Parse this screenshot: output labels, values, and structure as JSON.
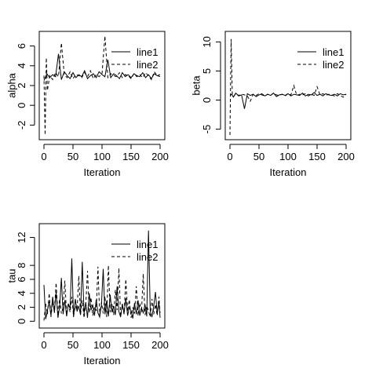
{
  "chart_data": [
    {
      "type": "line",
      "title": "",
      "xlabel": "Iteration",
      "ylabel": "alpha",
      "xlim": [
        0,
        200
      ],
      "ylim": [
        -3,
        7
      ],
      "xticks": [
        0,
        50,
        100,
        150,
        200
      ],
      "yticks": [
        -2,
        0,
        2,
        4,
        6
      ],
      "legend": "top-right",
      "series": [
        {
          "name": "line1",
          "style": "solid",
          "x": [
            0,
            5,
            10,
            15,
            20,
            25,
            30,
            35,
            40,
            45,
            50,
            55,
            60,
            65,
            70,
            75,
            80,
            85,
            90,
            95,
            100,
            105,
            110,
            115,
            120,
            125,
            130,
            135,
            140,
            145,
            150,
            155,
            160,
            165,
            170,
            175,
            180,
            185,
            190,
            195,
            200
          ],
          "y": [
            2.5,
            3.2,
            2.8,
            3.1,
            2.9,
            5.2,
            2.6,
            3.4,
            3.0,
            2.7,
            3.3,
            2.8,
            3.1,
            2.9,
            3.5,
            2.7,
            3.0,
            3.2,
            2.8,
            3.4,
            3.1,
            2.9,
            4.6,
            2.8,
            3.2,
            3.0,
            2.7,
            3.3,
            2.9,
            3.1,
            2.8,
            3.2,
            3.0,
            2.9,
            3.3,
            2.8,
            3.1,
            2.7,
            3.2,
            3.0,
            2.9
          ]
        },
        {
          "name": "line2",
          "style": "dashed",
          "x": [
            0,
            2,
            4,
            6,
            10,
            15,
            20,
            25,
            30,
            35,
            40,
            45,
            50,
            55,
            60,
            65,
            70,
            75,
            80,
            85,
            90,
            95,
            100,
            105,
            110,
            115,
            120,
            125,
            130,
            135,
            140,
            145,
            150,
            155,
            160,
            165,
            170,
            175,
            180,
            185,
            190,
            195,
            200
          ],
          "y": [
            3.0,
            -3.0,
            4.8,
            1.5,
            3.0,
            2.6,
            3.3,
            2.9,
            6.3,
            3.1,
            2.8,
            3.4,
            2.7,
            3.1,
            3.0,
            2.8,
            3.3,
            2.9,
            3.5,
            2.7,
            3.1,
            2.9,
            3.2,
            7.0,
            2.8,
            3.2,
            3.0,
            2.9,
            3.3,
            2.8,
            3.1,
            3.0,
            2.7,
            3.2,
            2.9,
            3.1,
            2.8,
            3.3,
            3.0,
            2.6,
            3.4,
            3.0,
            3.1
          ]
        }
      ]
    },
    {
      "type": "line",
      "title": "",
      "xlabel": "Iteration",
      "ylabel": "beta",
      "xlim": [
        0,
        200
      ],
      "ylim": [
        -6,
        11
      ],
      "xticks": [
        0,
        50,
        100,
        150,
        200
      ],
      "yticks": [
        -5,
        0,
        5,
        10
      ],
      "legend": "top-right",
      "series": [
        {
          "name": "line1",
          "style": "solid",
          "x": [
            0,
            3,
            6,
            10,
            15,
            20,
            25,
            30,
            35,
            40,
            45,
            50,
            55,
            60,
            65,
            70,
            75,
            80,
            85,
            90,
            95,
            100,
            105,
            110,
            115,
            120,
            125,
            130,
            135,
            140,
            145,
            150,
            155,
            160,
            165,
            170,
            175,
            180,
            185,
            190,
            195,
            200
          ],
          "y": [
            0.8,
            1.0,
            0.5,
            1.2,
            0.7,
            0.9,
            -1.5,
            1.1,
            0.8,
            1.0,
            0.6,
            0.9,
            1.1,
            0.7,
            1.0,
            0.8,
            1.2,
            0.6,
            0.9,
            1.0,
            0.8,
            1.1,
            0.7,
            1.0,
            0.9,
            0.8,
            1.2,
            0.7,
            1.0,
            0.9,
            1.3,
            0.8,
            1.0,
            0.7,
            1.1,
            0.9,
            0.8,
            1.0,
            0.7,
            1.1,
            0.9,
            1.0
          ]
        },
        {
          "name": "line2",
          "style": "dashed",
          "x": [
            0,
            2,
            4,
            6,
            10,
            15,
            20,
            25,
            30,
            35,
            40,
            45,
            50,
            55,
            60,
            65,
            70,
            75,
            80,
            85,
            90,
            95,
            100,
            105,
            110,
            115,
            120,
            125,
            130,
            135,
            140,
            145,
            150,
            155,
            160,
            165,
            170,
            175,
            180,
            185,
            190,
            195,
            200
          ],
          "y": [
            -6.0,
            10.5,
            1.0,
            0.6,
            1.1,
            0.8,
            1.0,
            0.9,
            0.7,
            -0.2,
            1.0,
            0.8,
            1.1,
            0.9,
            0.7,
            1.0,
            0.8,
            1.2,
            0.9,
            0.8,
            1.0,
            0.7,
            1.1,
            0.9,
            2.5,
            0.8,
            1.0,
            0.9,
            1.1,
            0.7,
            1.0,
            0.8,
            2.3,
            0.9,
            1.1,
            0.8,
            1.0,
            0.9,
            0.7,
            1.1,
            0.8,
            0.5,
            1.0
          ]
        }
      ]
    },
    {
      "type": "line",
      "title": "",
      "xlabel": "Iteration",
      "ylabel": "tau",
      "xlim": [
        0,
        200
      ],
      "ylim": [
        -0.3,
        13.3
      ],
      "xticks": [
        0,
        50,
        100,
        150,
        200
      ],
      "yticks": [
        0,
        2,
        4,
        6,
        8,
        12
      ],
      "legend": "top-right",
      "series": [
        {
          "name": "line1",
          "style": "solid",
          "x": [
            0,
            3,
            6,
            9,
            12,
            15,
            18,
            21,
            24,
            27,
            30,
            33,
            36,
            39,
            42,
            45,
            48,
            51,
            54,
            57,
            60,
            63,
            66,
            69,
            72,
            75,
            78,
            81,
            84,
            87,
            90,
            93,
            96,
            99,
            102,
            105,
            108,
            111,
            114,
            117,
            120,
            123,
            126,
            129,
            132,
            135,
            138,
            141,
            144,
            147,
            150,
            153,
            156,
            159,
            162,
            165,
            168,
            171,
            174,
            177,
            180,
            183,
            186,
            189,
            192,
            195,
            198,
            200
          ],
          "y": [
            5.2,
            0.3,
            1.5,
            2.8,
            0.8,
            3.5,
            1.2,
            4.2,
            0.5,
            2.1,
            6.2,
            1.0,
            3.0,
            0.7,
            2.5,
            1.8,
            9.0,
            0.6,
            3.2,
            1.4,
            2.2,
            0.9,
            8.5,
            1.1,
            2.7,
            0.5,
            4.0,
            1.6,
            2.3,
            0.8,
            3.1,
            1.2,
            0.6,
            2.4,
            7.5,
            1.0,
            2.9,
            0.7,
            3.8,
            1.3,
            2.2,
            0.9,
            5.0,
            1.4,
            0.6,
            2.5,
            1.1,
            3.3,
            0.8,
            2.0,
            1.5,
            0.4,
            2.6,
            1.0,
            3.0,
            0.8,
            1.9,
            1.2,
            2.4,
            0.7,
            13.0,
            1.5,
            0.6,
            2.2,
            4.2,
            1.0,
            2.8,
            0.5
          ]
        },
        {
          "name": "line2",
          "style": "dashed",
          "x": [
            0,
            3,
            6,
            9,
            12,
            15,
            18,
            21,
            24,
            27,
            30,
            33,
            36,
            39,
            42,
            45,
            48,
            51,
            54,
            57,
            60,
            63,
            66,
            69,
            72,
            75,
            78,
            81,
            84,
            87,
            90,
            93,
            96,
            99,
            102,
            105,
            108,
            111,
            114,
            117,
            120,
            123,
            126,
            129,
            132,
            135,
            138,
            141,
            144,
            147,
            150,
            153,
            156,
            159,
            162,
            165,
            168,
            171,
            174,
            177,
            180,
            183,
            186,
            189,
            192,
            195,
            198,
            200
          ],
          "y": [
            0.1,
            2.5,
            1.0,
            4.0,
            0.6,
            2.8,
            1.5,
            5.5,
            0.8,
            3.2,
            1.1,
            2.0,
            5.8,
            0.9,
            2.6,
            1.3,
            3.5,
            0.7,
            2.2,
            1.6,
            6.5,
            1.0,
            3.0,
            0.5,
            2.4,
            7.2,
            1.2,
            3.4,
            0.8,
            2.0,
            1.5,
            7.8,
            0.9,
            2.7,
            1.1,
            3.6,
            0.6,
            8.0,
            1.3,
            2.5,
            0.9,
            4.5,
            1.6,
            7.6,
            0.7,
            2.3,
            1.0,
            6.0,
            1.4,
            3.1,
            0.5,
            2.0,
            1.1,
            5.0,
            0.8,
            2.6,
            1.3,
            6.8,
            0.9,
            2.2,
            1.5,
            0.6,
            3.2,
            1.0,
            2.4,
            0.8,
            3.5,
            1.2
          ]
        }
      ]
    }
  ]
}
